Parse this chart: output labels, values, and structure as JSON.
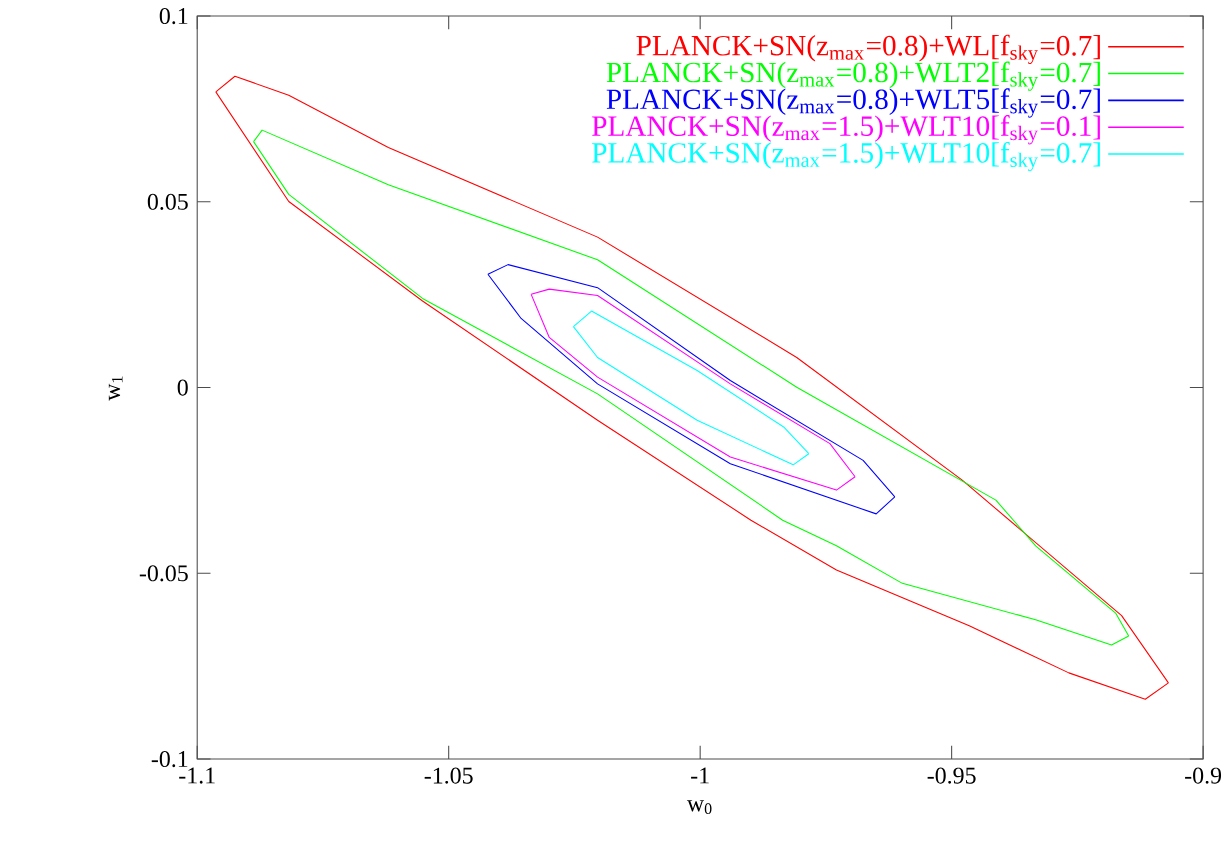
{
  "chart_data": {
    "type": "line",
    "xlabel": "w$_{0}$",
    "ylabel": "w$_{1}$",
    "xlim": [
      -1.1,
      -0.9
    ],
    "ylim": [
      -0.1,
      0.1
    ],
    "xticks": [
      -1.1,
      -1.05,
      -1,
      -0.95,
      -0.9
    ],
    "yticks": [
      -0.1,
      -0.05,
      0,
      0.05,
      0.1
    ],
    "legend": "top right",
    "grid": false,
    "marker": "none",
    "line_style": "solid",
    "series": [
      {
        "name": "PLANCK+SN(z$_{max}$=0.8)+WL[f$_{sky}$=0.7]",
        "color": "#ff0000",
        "x": [
          -1.0963,
          -1.0925,
          -1.0818,
          -1.062,
          -1.0204,
          -0.9808,
          -0.9479,
          -0.9162,
          -0.9069
        ],
        "values": [
          0.0796,
          0.0838,
          0.0787,
          0.0646,
          0.0405,
          0.0081,
          -0.0249,
          -0.0614,
          -0.0795
        ]
      },
      {
        "color": "#ff0000",
        "x": [
          -1.0963,
          -1.0818,
          -1.0552,
          -1.0204,
          -0.9899,
          -0.9729,
          -0.9465,
          -0.9267,
          -0.9115,
          -0.9069
        ],
        "values": [
          0.0796,
          0.0501,
          0.0233,
          -0.0088,
          -0.0357,
          -0.0491,
          -0.0641,
          -0.0768,
          -0.0839,
          -0.0795
        ]
      },
      {
        "name": "PLANCK+SN(z$_{max}$=0.8)+WLT2[f$_{sky}$=0.7]",
        "color": "#00ff00",
        "x": [
          -1.0888,
          -1.0871,
          -1.062,
          -1.0204,
          -0.9808,
          -0.9412,
          -0.9333,
          -0.9174,
          -0.9148
        ],
        "values": [
          0.0662,
          0.0693,
          0.0546,
          0.0344,
          0.0001,
          -0.0303,
          -0.0426,
          -0.0607,
          -0.0669
        ]
      },
      {
        "color": "#00ff00",
        "x": [
          -1.0888,
          -1.0818,
          -1.0552,
          -1.0204,
          -0.9836,
          -0.9729,
          -0.9598,
          -0.9333,
          -0.9182,
          -0.9148
        ],
        "values": [
          0.0662,
          0.052,
          0.024,
          -0.0017,
          -0.0357,
          -0.0426,
          -0.0527,
          -0.0625,
          -0.0693,
          -0.0669
        ]
      },
      {
        "name": "PLANCK+SN(z$_{max}$=0.8)+WLT5[f$_{sky}$=0.7]",
        "color": "#0000ff",
        "x": [
          -1.0422,
          -1.0382,
          -1.0204,
          -0.994,
          -0.9676,
          -0.9613
        ],
        "values": [
          0.0305,
          0.0331,
          0.0269,
          0.0019,
          -0.0196,
          -0.0294
        ]
      },
      {
        "color": "#0000ff",
        "x": [
          -1.0422,
          -1.0356,
          -1.0204,
          -0.994,
          -0.965,
          -0.9613
        ],
        "values": [
          0.0305,
          0.0186,
          0.001,
          -0.0205,
          -0.034,
          -0.0294
        ]
      },
      {
        "name": "PLANCK+SN(z$_{max}$=1.5)+WLT10[f$_{sky}$=0.1]",
        "color": "#ff00ff",
        "x": [
          -1.0336,
          -1.03,
          -1.0204,
          -0.994,
          -0.9742,
          -0.9692
        ],
        "values": [
          0.0251,
          0.0265,
          0.0248,
          0.001,
          -0.0151,
          -0.024
        ]
      },
      {
        "color": "#ff00ff",
        "x": [
          -1.0336,
          -1.03,
          -1.0204,
          -0.994,
          -0.9729,
          -0.9692
        ],
        "values": [
          0.0251,
          0.0135,
          0.0028,
          -0.0187,
          -0.0276,
          -0.024
        ]
      },
      {
        "name": "PLANCK+SN(z$_{max}$=1.5)+WLT10[f$_{sky}$=0.7]",
        "color": "#00ffff",
        "x": [
          -1.0252,
          -1.0216,
          -1.0006,
          -0.9834,
          -0.9784
        ],
        "values": [
          0.0164,
          0.0206,
          0.0046,
          -0.0106,
          -0.0178
        ]
      },
      {
        "color": "#00ffff",
        "x": [
          -1.0252,
          -1.0204,
          -1.0006,
          -0.9815,
          -0.9784
        ],
        "values": [
          0.0164,
          0.0081,
          -0.0088,
          -0.0208,
          -0.0178
        ]
      }
    ]
  }
}
